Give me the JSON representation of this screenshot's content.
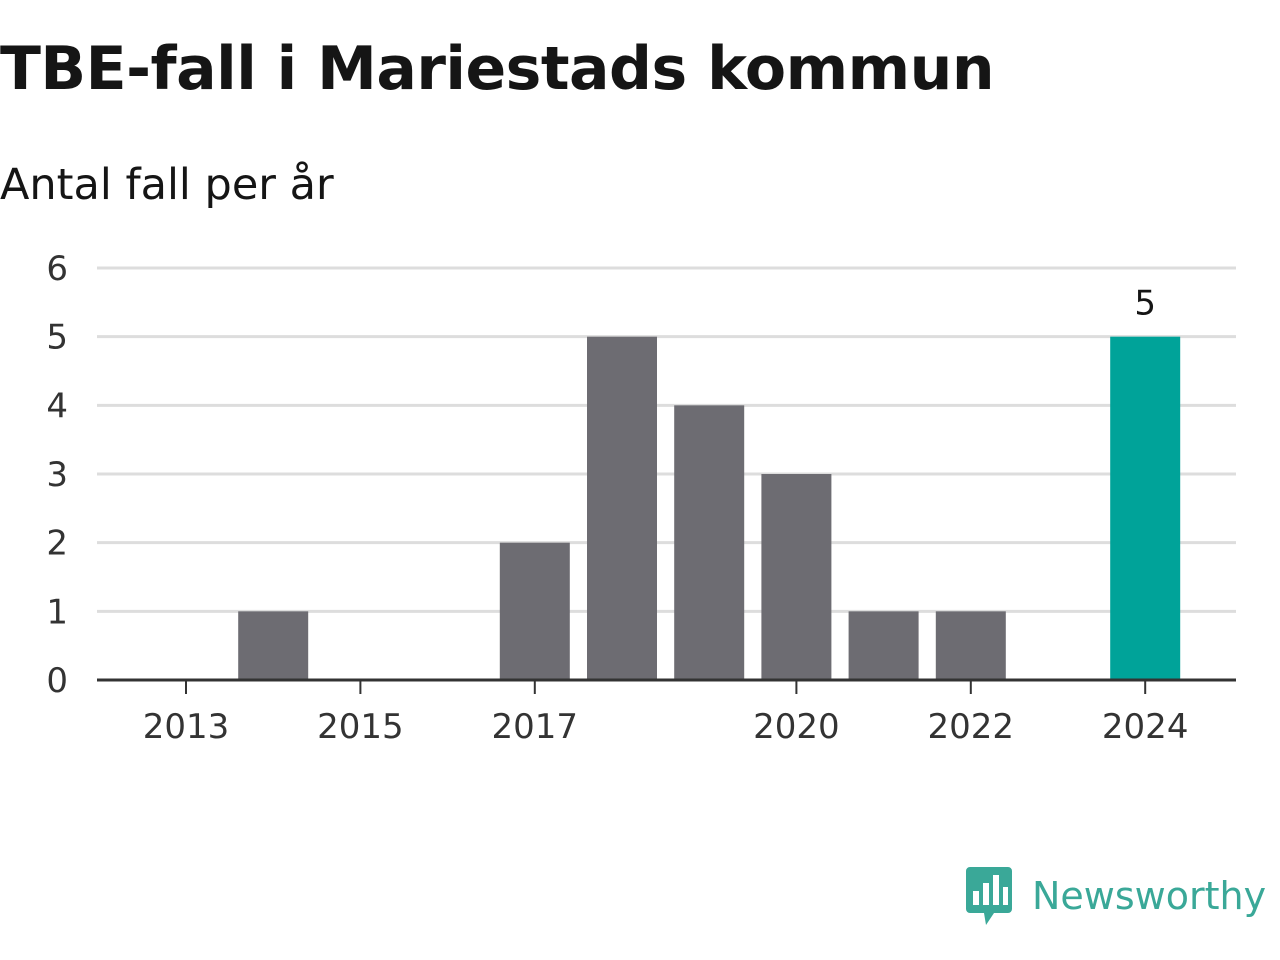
{
  "title": "TBE-fall i Mariestads kommun",
  "subtitle": "Antal fall per år",
  "brand": {
    "name": "Newsworthy",
    "icon": "bar-chart-speech-bubble-icon",
    "color": "#3aa898"
  },
  "chart_data": {
    "type": "bar",
    "x": [
      2013,
      2014,
      2015,
      2016,
      2017,
      2018,
      2019,
      2020,
      2021,
      2022,
      2023,
      2024
    ],
    "values": [
      0,
      1,
      0,
      0,
      2,
      5,
      4,
      3,
      1,
      1,
      0,
      5
    ],
    "x_tick_labels": [
      "2013",
      "2015",
      "2017",
      "2020",
      "2022",
      "2024"
    ],
    "y_tick_labels": [
      "0",
      "1",
      "2",
      "3",
      "4",
      "5",
      "6"
    ],
    "ylim": [
      0,
      6
    ],
    "grid": true,
    "highlight": {
      "x": 2024,
      "label": "5",
      "color": "#00a399"
    },
    "bar_color": "#6d6c72"
  }
}
